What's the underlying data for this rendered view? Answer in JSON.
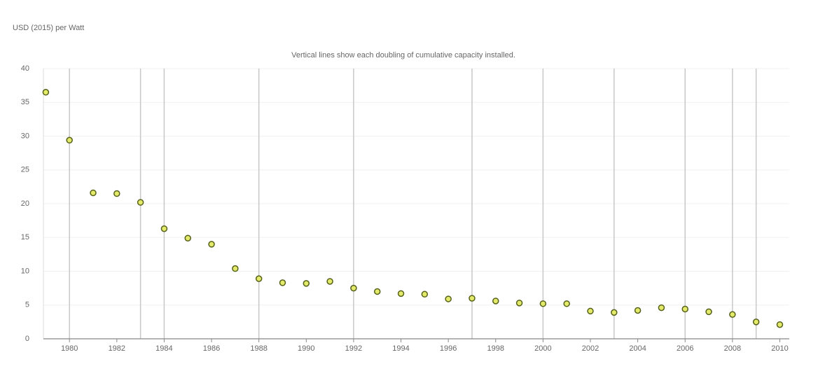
{
  "chart_data": {
    "type": "scatter",
    "y_axis_label": "USD (2015) per Watt",
    "annotation": "Vertical lines show each doubling of cumulative capacity installed.",
    "x": [
      1979,
      1980,
      1981,
      1982,
      1983,
      1984,
      1985,
      1986,
      1987,
      1988,
      1989,
      1990,
      1991,
      1992,
      1993,
      1994,
      1995,
      1996,
      1997,
      1998,
      1999,
      2000,
      2001,
      2002,
      2003,
      2004,
      2005,
      2006,
      2007,
      2008,
      2009,
      2010
    ],
    "values": [
      36.5,
      29.4,
      21.6,
      21.5,
      20.2,
      16.3,
      14.9,
      14.0,
      10.4,
      8.9,
      8.3,
      8.2,
      8.5,
      7.5,
      7.0,
      6.7,
      6.6,
      5.9,
      6.0,
      5.6,
      5.3,
      5.2,
      5.2,
      4.1,
      3.9,
      4.2,
      4.6,
      4.4,
      4.0,
      3.6,
      2.5,
      2.1
    ],
    "color": "#e3ea6a",
    "doubling_years": [
      1980,
      1983,
      1984,
      1988,
      1992,
      1997,
      2000,
      2003,
      2006,
      2008,
      2009
    ],
    "xlim": [
      1978.9,
      2010.4
    ],
    "xticks": [
      1980,
      1982,
      1984,
      1986,
      1988,
      1990,
      1992,
      1994,
      1996,
      1998,
      2000,
      2002,
      2004,
      2006,
      2008,
      2010
    ],
    "ylim": [
      0,
      40
    ],
    "yticks": [
      0,
      5,
      10,
      15,
      20,
      25,
      30,
      35,
      40
    ],
    "grid": true
  }
}
